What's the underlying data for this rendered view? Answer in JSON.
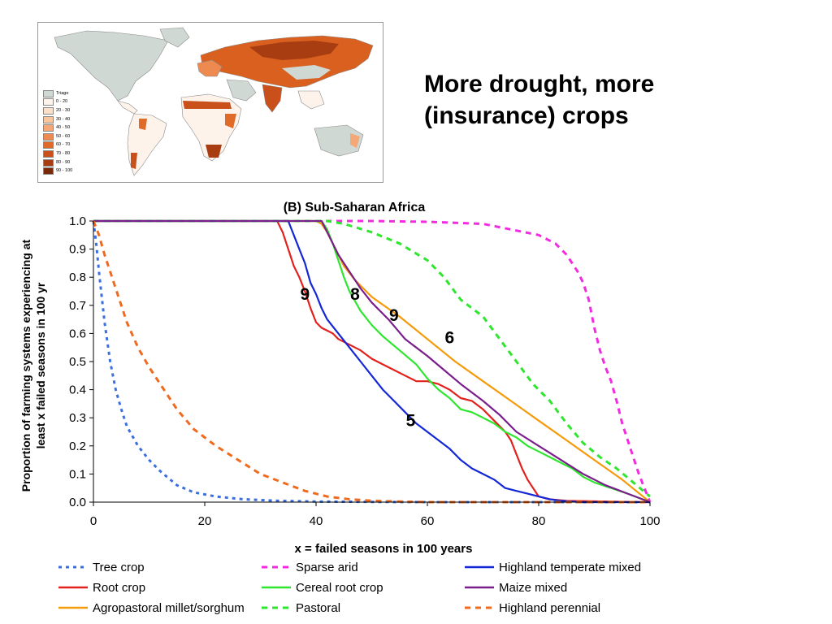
{
  "slide": {
    "title_lines": [
      "More drought, more",
      "(insurance) crops"
    ]
  },
  "map": {
    "legend": [
      {
        "label": "Triage",
        "color": "#cfd8d3"
      },
      {
        "label": "0 - 20",
        "color": "#fdf3ea"
      },
      {
        "label": "20 - 30",
        "color": "#fbe0c9"
      },
      {
        "label": "30 - 40",
        "color": "#f8c7a0"
      },
      {
        "label": "40 - 50",
        "color": "#f4a877"
      },
      {
        "label": "50 - 60",
        "color": "#ee8a4f"
      },
      {
        "label": "60 - 70",
        "color": "#e06a28"
      },
      {
        "label": "70 - 80",
        "color": "#c9501a"
      },
      {
        "label": "80 - 90",
        "color": "#a83d12"
      },
      {
        "label": "90 - 100",
        "color": "#7a2a08"
      }
    ]
  },
  "chart_data": {
    "type": "line",
    "title": "(B) Sub-Saharan Africa",
    "xlabel": "x = failed seasons in 100 years",
    "ylabel": "Proportion of farming systems experiencing at least x failed seasons in 100 yr",
    "xlim": [
      0,
      100
    ],
    "ylim": [
      0,
      1.0
    ],
    "xticks": [
      "0",
      "20",
      "40",
      "60",
      "80",
      "100"
    ],
    "yticks": [
      "0.0",
      "0.1",
      "0.2",
      "0.3",
      "0.4",
      "0.5",
      "0.6",
      "0.7",
      "0.8",
      "0.9",
      "1.0"
    ],
    "grid": false,
    "legend_position": "bottom",
    "series": [
      {
        "name": "Tree crop",
        "color": "#3b6fe0",
        "dash": "dotted",
        "x": [
          0,
          0.5,
          1,
          2,
          3,
          4,
          5,
          6,
          8,
          10,
          12,
          15,
          18,
          22,
          27,
          33,
          40,
          50,
          60,
          80,
          100
        ],
        "y": [
          1.0,
          0.92,
          0.82,
          0.64,
          0.5,
          0.4,
          0.33,
          0.27,
          0.2,
          0.15,
          0.11,
          0.06,
          0.035,
          0.02,
          0.01,
          0.005,
          0.002,
          0.001,
          0,
          0,
          0
        ]
      },
      {
        "name": "Root crop",
        "color": "#e3211c",
        "dash": "solid",
        "x": [
          0,
          33,
          34,
          35,
          36,
          37,
          38,
          39,
          40,
          41,
          42,
          43,
          44,
          46,
          48,
          50,
          52,
          54,
          56,
          58,
          60,
          62,
          64,
          66,
          68,
          70,
          72,
          74,
          75,
          76,
          77,
          78,
          79,
          80,
          82,
          85,
          90,
          100
        ],
        "y": [
          1.0,
          1.0,
          0.96,
          0.9,
          0.84,
          0.8,
          0.75,
          0.69,
          0.64,
          0.62,
          0.61,
          0.6,
          0.58,
          0.56,
          0.54,
          0.51,
          0.49,
          0.47,
          0.45,
          0.43,
          0.43,
          0.42,
          0.4,
          0.37,
          0.36,
          0.33,
          0.29,
          0.25,
          0.22,
          0.17,
          0.12,
          0.08,
          0.05,
          0.02,
          0.01,
          0.005,
          0.003,
          0
        ]
      },
      {
        "name": "Agropastoral millet/sorghum",
        "color": "#f59a0a",
        "dash": "solid",
        "x": [
          0,
          40,
          41,
          42,
          43,
          44,
          45,
          47,
          50,
          55,
          60,
          65,
          70,
          75,
          80,
          85,
          90,
          95,
          100
        ],
        "y": [
          1.0,
          1.0,
          0.99,
          0.96,
          0.92,
          0.88,
          0.84,
          0.79,
          0.73,
          0.66,
          0.58,
          0.5,
          0.43,
          0.36,
          0.29,
          0.22,
          0.15,
          0.08,
          0
        ]
      },
      {
        "name": "Sparse arid",
        "color": "#f22be0",
        "dash": "dashed",
        "x": [
          0,
          40,
          50,
          60,
          70,
          75,
          80,
          83,
          85,
          87,
          88,
          89,
          90,
          91,
          92,
          93,
          94,
          95,
          96,
          97,
          98,
          99,
          100
        ],
        "y": [
          1.0,
          1.0,
          1.0,
          0.997,
          0.99,
          0.97,
          0.95,
          0.92,
          0.88,
          0.82,
          0.78,
          0.72,
          0.62,
          0.54,
          0.48,
          0.43,
          0.36,
          0.28,
          0.22,
          0.16,
          0.1,
          0.05,
          0
        ]
      },
      {
        "name": "Cereal root crop",
        "color": "#2ee62e",
        "dash": "solid",
        "x": [
          0,
          41,
          42,
          43,
          44,
          45,
          46,
          48,
          50,
          52,
          55,
          58,
          60,
          62,
          64,
          66,
          68,
          70,
          72,
          74,
          76,
          78,
          80,
          82,
          84,
          86,
          88,
          90,
          93,
          96,
          100
        ],
        "y": [
          1.0,
          1.0,
          0.97,
          0.92,
          0.86,
          0.8,
          0.75,
          0.68,
          0.63,
          0.59,
          0.54,
          0.49,
          0.44,
          0.4,
          0.37,
          0.33,
          0.32,
          0.3,
          0.28,
          0.25,
          0.23,
          0.2,
          0.18,
          0.16,
          0.14,
          0.12,
          0.09,
          0.07,
          0.05,
          0.03,
          0
        ]
      },
      {
        "name": "Pastoral",
        "color": "#2ee62e",
        "dash": "dashed",
        "x": [
          0,
          42,
          45,
          50,
          55,
          60,
          63,
          66,
          70,
          73,
          76,
          79,
          82,
          85,
          88,
          91,
          94,
          97,
          100
        ],
        "y": [
          1.0,
          1.0,
          0.99,
          0.96,
          0.92,
          0.86,
          0.8,
          0.72,
          0.66,
          0.58,
          0.5,
          0.42,
          0.36,
          0.28,
          0.21,
          0.16,
          0.12,
          0.07,
          0.02
        ]
      },
      {
        "name": "Highland temperate mixed",
        "color": "#1427d6",
        "dash": "solid",
        "x": [
          0,
          35,
          36,
          37,
          38,
          39,
          40,
          41,
          42,
          44,
          46,
          48,
          50,
          52,
          54,
          56,
          58,
          60,
          62,
          64,
          66,
          68,
          70,
          72,
          74,
          76,
          78,
          80,
          82,
          84,
          86,
          88,
          90,
          100
        ],
        "y": [
          1.0,
          1.0,
          0.95,
          0.9,
          0.85,
          0.78,
          0.74,
          0.69,
          0.65,
          0.6,
          0.55,
          0.5,
          0.45,
          0.4,
          0.36,
          0.32,
          0.28,
          0.25,
          0.22,
          0.19,
          0.15,
          0.12,
          0.1,
          0.08,
          0.05,
          0.04,
          0.03,
          0.02,
          0.01,
          0.005,
          0.002,
          0,
          0,
          0
        ]
      },
      {
        "name": "Maize mixed",
        "color": "#7a1e8c",
        "dash": "solid",
        "x": [
          0,
          41,
          42,
          43,
          44,
          46,
          48,
          50,
          53,
          56,
          60,
          63,
          66,
          70,
          73,
          76,
          80,
          84,
          88,
          92,
          96,
          100
        ],
        "y": [
          1.0,
          1.0,
          0.96,
          0.92,
          0.88,
          0.82,
          0.76,
          0.71,
          0.65,
          0.58,
          0.52,
          0.47,
          0.42,
          0.36,
          0.31,
          0.25,
          0.2,
          0.15,
          0.1,
          0.06,
          0.03,
          0
        ]
      },
      {
        "name": "Highland perennial",
        "color": "#ef6a1e",
        "dash": "dashed",
        "x": [
          0,
          1,
          2,
          3,
          4,
          5,
          6,
          8,
          10,
          12,
          15,
          18,
          22,
          26,
          30,
          34,
          38,
          42,
          46,
          50,
          55,
          60,
          70,
          80,
          100
        ],
        "y": [
          1.0,
          0.95,
          0.88,
          0.82,
          0.76,
          0.7,
          0.64,
          0.55,
          0.48,
          0.42,
          0.33,
          0.26,
          0.2,
          0.15,
          0.1,
          0.07,
          0.04,
          0.02,
          0.01,
          0.005,
          0.002,
          0,
          0,
          0,
          0
        ]
      }
    ],
    "annotations": [
      {
        "text": "9",
        "x": 38,
        "y": 0.72
      },
      {
        "text": "8",
        "x": 47,
        "y": 0.72
      },
      {
        "text": "9",
        "x": 54,
        "y": 0.645
      },
      {
        "text": "6",
        "x": 64,
        "y": 0.565
      },
      {
        "text": "5",
        "x": 57,
        "y": 0.27
      }
    ]
  }
}
